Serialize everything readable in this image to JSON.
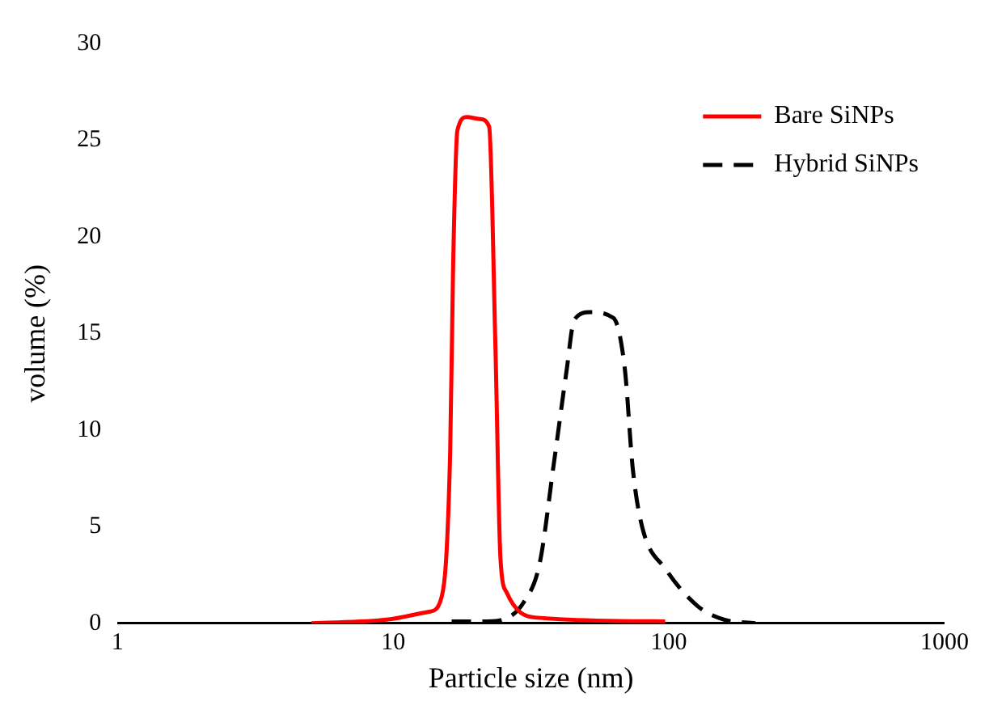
{
  "chart_data": {
    "type": "line",
    "xlabel": "Particle size (nm)",
    "ylabel": "volume (%)",
    "log": "x",
    "xlim": [
      1,
      1000
    ],
    "xticks": [
      1,
      10,
      100,
      1000
    ],
    "ylim": [
      0,
      30
    ],
    "yticks": [
      0,
      5,
      10,
      15,
      20,
      25,
      30
    ],
    "grid": false,
    "legend": "top right",
    "marker": "none",
    "series": [
      {
        "name": "Bare SiNPs",
        "color": "#ff0000",
        "line_style": "solid",
        "x": [
          5.05,
          9.6,
          13.5,
          14.8,
          16.1,
          16.5,
          17.1,
          18.5,
          20.6,
          22.3,
          23.5,
          24.5,
          25.8,
          32.7,
          97
        ],
        "values": [
          0,
          0.2,
          0.6,
          1.1,
          8.8,
          18.4,
          25.5,
          26.2,
          26.1,
          25.7,
          14.3,
          3.4,
          1.6,
          0.3,
          0.1
        ]
      },
      {
        "name": "Hybrid SiNPs",
        "color": "#000000",
        "line_style": "dashed",
        "x": [
          16.3,
          22,
          25.1,
          29.8,
          34,
          38.3,
          42.5,
          45.4,
          51.8,
          63,
          69.2,
          74,
          80,
          97.4,
          127,
          158,
          206
        ],
        "values": [
          0.1,
          0.1,
          0.2,
          1.1,
          3.1,
          8.3,
          13,
          15.7,
          16.1,
          15.8,
          13.2,
          8,
          5,
          2.8,
          0.9,
          0.2,
          0
        ]
      }
    ]
  }
}
